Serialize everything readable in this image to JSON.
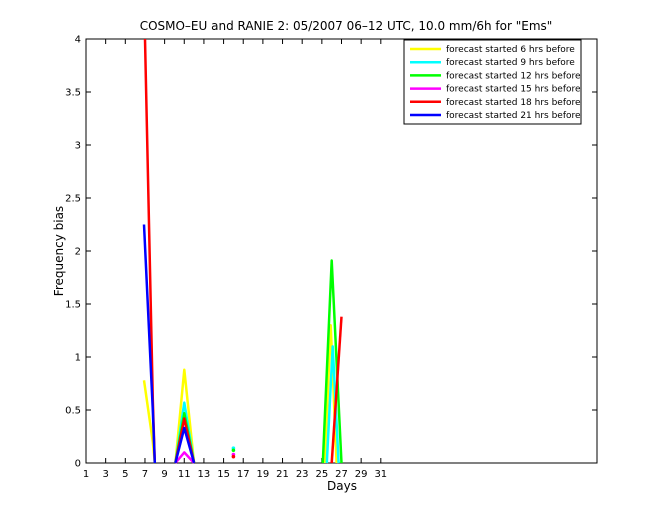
{
  "chart_data": {
    "type": "line",
    "title": "COSMO–EU and RANIE 2: 05/2007 06–12 UTC, 10.0 mm/6h for \"Ems\"",
    "xlabel": "Days",
    "ylabel": "Frequency bias",
    "xlim": [
      1,
      53
    ],
    "ylim": [
      0,
      4
    ],
    "xticks": [
      1,
      3,
      5,
      7,
      9,
      11,
      13,
      15,
      17,
      19,
      21,
      23,
      25,
      27,
      29,
      31
    ],
    "yticks": [
      0,
      0.5,
      1,
      1.5,
      2,
      2.5,
      3,
      3.5,
      4
    ],
    "ytick_labels": [
      "0",
      "0.5",
      "1",
      "1.5",
      "2",
      "2.5",
      "3",
      "3.5",
      "4"
    ],
    "legend_position": "top-right",
    "grid": false,
    "series": [
      {
        "name": "forecast started 6 hrs before",
        "color": "#ffff00",
        "segments": [
          [
            [
              6.9,
              0.78
            ],
            [
              7.8,
              0.2
            ],
            [
              8.0,
              0.0
            ]
          ],
          [
            [
              10.1,
              0.0
            ],
            [
              11.0,
              0.88
            ],
            [
              12.0,
              0.0
            ]
          ],
          [
            [
              25.3,
              0.0
            ],
            [
              25.9,
              1.3
            ],
            [
              26.5,
              0.0
            ]
          ]
        ]
      },
      {
        "name": "forecast started 9 hrs before",
        "color": "#00ffff",
        "segments": [
          [
            [
              10.1,
              0.0
            ],
            [
              11.0,
              0.57
            ],
            [
              12.0,
              0.0
            ]
          ],
          [
            [
              25.5,
              0.0
            ],
            [
              26.1,
              1.1
            ],
            [
              26.7,
              0.0
            ]
          ]
        ],
        "points": [
          [
            16.0,
            0.14
          ]
        ]
      },
      {
        "name": "forecast started 12 hrs before",
        "color": "#00ff00",
        "segments": [
          [
            [
              10.1,
              0.0
            ],
            [
              11.0,
              0.47
            ],
            [
              12.0,
              0.0
            ]
          ],
          [
            [
              25.1,
              0.0
            ],
            [
              26.0,
              1.91
            ],
            [
              27.0,
              0.0
            ]
          ]
        ],
        "points": [
          [
            16.0,
            0.12
          ]
        ]
      },
      {
        "name": "forecast started 15 hrs before",
        "color": "#ff00ff",
        "segments": [
          [
            [
              10.1,
              0.0
            ],
            [
              11.0,
              0.1
            ],
            [
              12.0,
              0.0
            ]
          ]
        ],
        "points": [
          [
            16.0,
            0.08
          ]
        ]
      },
      {
        "name": "forecast started 18 hrs before",
        "color": "#ff0000",
        "segments": [
          [
            [
              7.0,
              4.0
            ],
            [
              7.8,
              0.6
            ],
            [
              8.0,
              0.0
            ]
          ],
          [
            [
              10.1,
              0.0
            ],
            [
              11.0,
              0.42
            ],
            [
              12.0,
              0.0
            ]
          ],
          [
            [
              26.0,
              0.0
            ],
            [
              27.0,
              1.38
            ]
          ]
        ],
        "points": [
          [
            16.0,
            0.06
          ]
        ]
      },
      {
        "name": "forecast started 21 hrs before",
        "color": "#0000ff",
        "segments": [
          [
            [
              6.9,
              2.25
            ],
            [
              7.8,
              0.5
            ],
            [
              8.0,
              0.0
            ]
          ],
          [
            [
              10.1,
              0.0
            ],
            [
              11.0,
              0.33
            ],
            [
              12.0,
              0.0
            ]
          ]
        ]
      }
    ]
  }
}
